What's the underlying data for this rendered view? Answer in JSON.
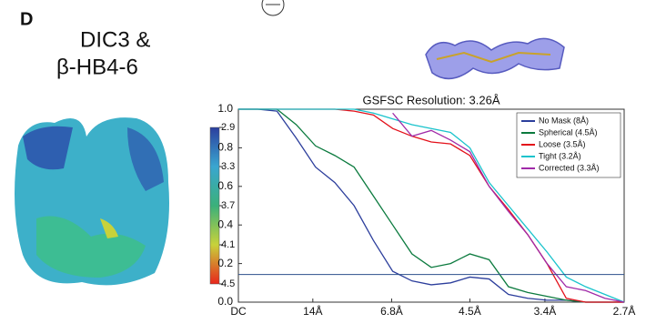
{
  "panel_label": "D",
  "heading": [
    "DIC3 &",
    "β-HB4-6"
  ],
  "colorbar": {
    "clim": [
      2.9,
      4.5
    ],
    "ticks": [
      2.9,
      3.3,
      3.7,
      4.1,
      4.5
    ],
    "colors": [
      "#2b3f9e",
      "#3aa6d0",
      "#3bb07a",
      "#c8d23a",
      "#e8261c"
    ]
  },
  "chart_data": {
    "type": "line",
    "title": "GSFSC Resolution: 3.26Å",
    "x": [
      0,
      0.0185,
      0.037,
      0.0555,
      0.074,
      0.0925,
      0.111,
      0.1295,
      0.148,
      0.1665,
      0.185,
      0.2035,
      0.222,
      0.2405,
      0.259,
      0.2775,
      0.296,
      0.3145,
      0.333,
      0.3515,
      0.37
    ],
    "xlim": [
      0,
      0.37
    ],
    "xticks": [
      {
        "value": 0,
        "label": "DC"
      },
      {
        "value": 0.0714,
        "label": "14Å"
      },
      {
        "value": 0.147,
        "label": "6.8Å"
      },
      {
        "value": 0.222,
        "label": "4.5Å"
      },
      {
        "value": 0.294,
        "label": "3.4Å"
      },
      {
        "value": 0.37,
        "label": "2.7Å"
      }
    ],
    "ylim": [
      0,
      1
    ],
    "yticks": [
      {
        "value": 0,
        "label": "0.0"
      },
      0.2,
      0.4,
      0.6,
      0.8,
      {
        "value": 1,
        "label": "1.0"
      }
    ],
    "threshold": 0.143,
    "legend": "upper right",
    "series": [
      {
        "name": "No Mask (8Å)",
        "color": "#2c3e9c",
        "values": [
          1,
          1,
          0.99,
          0.85,
          0.7,
          0.62,
          0.5,
          0.32,
          0.16,
          0.11,
          0.09,
          0.1,
          0.13,
          0.12,
          0.04,
          0.02,
          0.01,
          0.01,
          0,
          0,
          0
        ]
      },
      {
        "name": "Spherical (4.5Å)",
        "color": "#0b7a3e",
        "values": [
          1,
          1,
          1,
          0.92,
          0.81,
          0.76,
          0.7,
          0.55,
          0.4,
          0.25,
          0.18,
          0.2,
          0.25,
          0.22,
          0.08,
          0.05,
          0.03,
          0.01,
          0,
          0,
          0
        ]
      },
      {
        "name": "Loose (3.5Å)",
        "color": "#e3101a",
        "values": [
          1,
          1,
          1,
          1,
          1,
          1,
          0.99,
          0.97,
          0.9,
          0.86,
          0.83,
          0.82,
          0.76,
          0.6,
          0.48,
          0.35,
          0.2,
          0.02,
          0,
          0,
          0
        ]
      },
      {
        "name": "Tight (3.2Å)",
        "color": "#19c3cc",
        "values": [
          1,
          1,
          1,
          1,
          1,
          1,
          1,
          0.98,
          0.95,
          0.92,
          0.9,
          0.88,
          0.8,
          0.62,
          0.5,
          0.38,
          0.26,
          0.13,
          0.08,
          0.04,
          0
        ]
      },
      {
        "name": "Corrected (3.3Å)",
        "color": "#a02aa8",
        "values": [
          null,
          null,
          null,
          null,
          null,
          null,
          null,
          null,
          0.98,
          0.86,
          0.89,
          0.84,
          0.78,
          0.6,
          0.47,
          0.35,
          0.2,
          0.08,
          0.06,
          0.02,
          0
        ]
      }
    ]
  }
}
